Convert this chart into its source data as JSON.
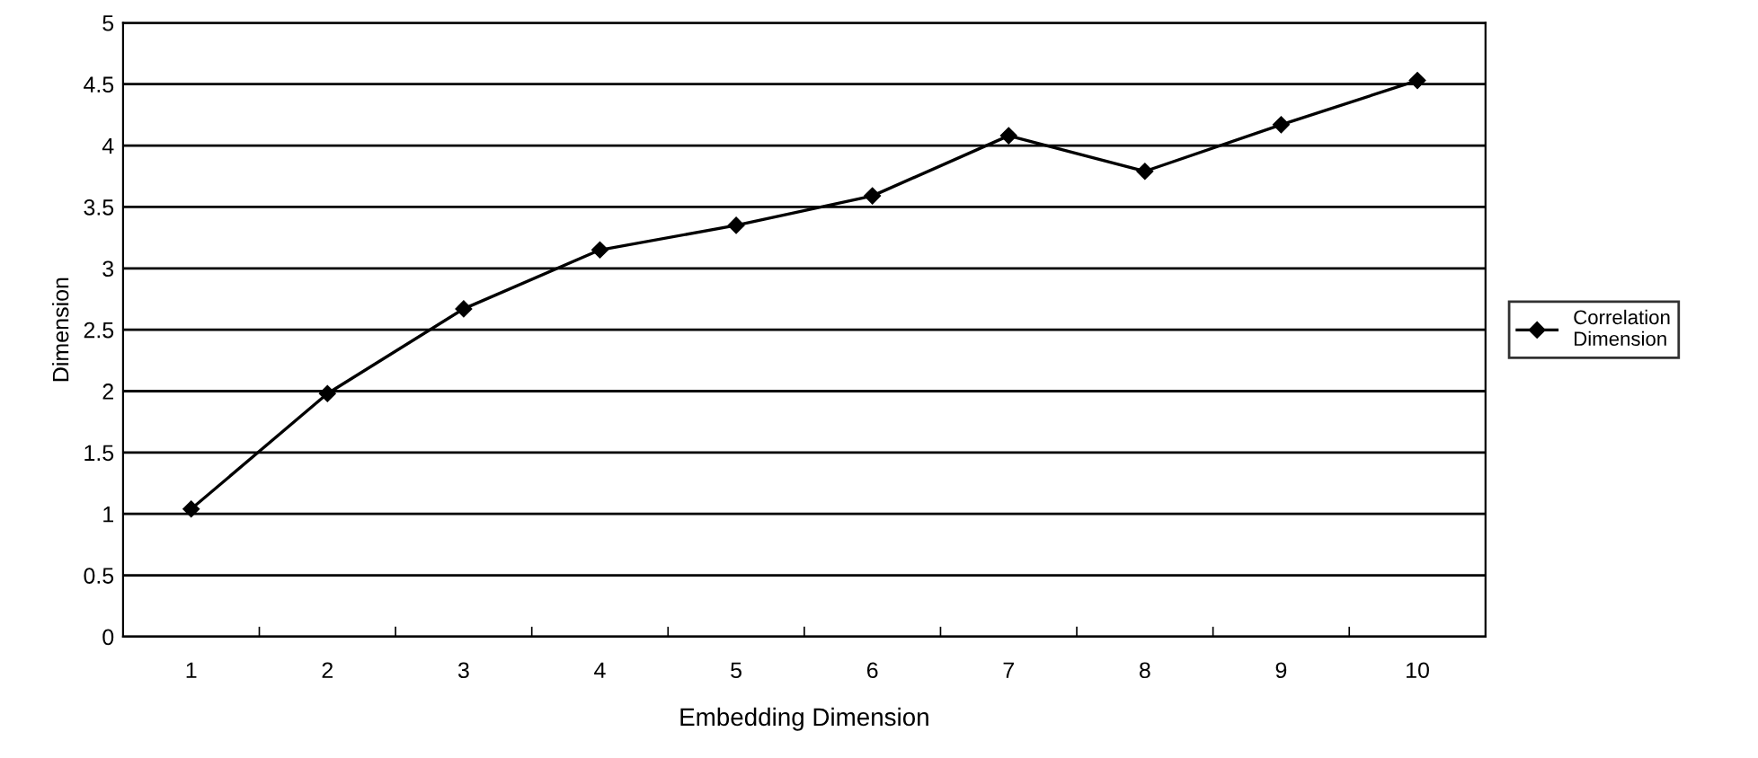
{
  "chart_data": {
    "type": "line",
    "xlabel": "Embedding Dimension",
    "ylabel": "Dimension",
    "categories": [
      "1",
      "2",
      "3",
      "4",
      "5",
      "6",
      "7",
      "8",
      "9",
      "10"
    ],
    "series": [
      {
        "name": "Correlation Dimension",
        "color": "#000000",
        "values": [
          1.04,
          1.98,
          2.67,
          3.15,
          3.35,
          3.59,
          4.08,
          3.79,
          4.17,
          4.53
        ]
      }
    ],
    "ylim": [
      0,
      5
    ],
    "yticks": [
      0,
      0.5,
      1,
      1.5,
      2,
      2.5,
      3,
      3.5,
      4,
      4.5,
      5
    ],
    "grid": "y",
    "legend": "right",
    "marker": "diamond",
    "line_style": "solid"
  }
}
